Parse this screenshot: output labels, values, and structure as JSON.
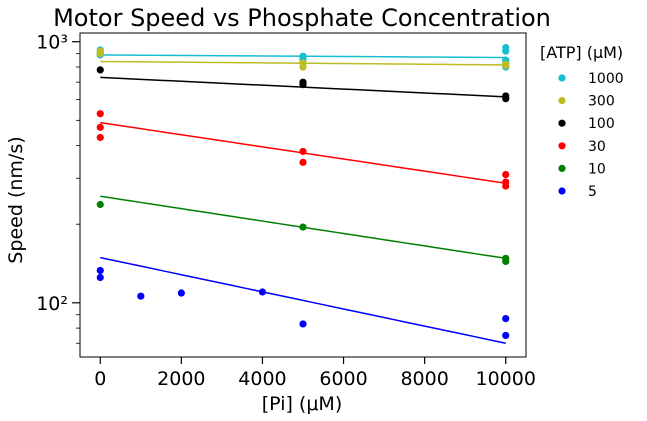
{
  "chart_data": {
    "type": "scatter",
    "title": "Motor Speed vs Phosphate Concentration",
    "xlabel": "[Pi] (μM)",
    "ylabel": "Speed (nm/s)",
    "xlim": [
      -500,
      10500
    ],
    "ylim": [
      62,
      1080
    ],
    "yscale": "log",
    "xticks": [
      0,
      2000,
      4000,
      6000,
      8000,
      10000
    ],
    "xtick_labels": [
      "0",
      "2000",
      "4000",
      "6000",
      "8000",
      "10000"
    ],
    "yticks_major": [
      100,
      1000
    ],
    "ytick_labels": [
      "10²",
      "10³"
    ],
    "legend": {
      "title": "[ATP] (μM)",
      "placement": "outside-right"
    },
    "series": [
      {
        "name": "1000",
        "color": "#17becf",
        "points": [
          [
            0,
            930
          ],
          [
            0,
            910
          ],
          [
            0,
            890
          ],
          [
            5000,
            880
          ],
          [
            5000,
            860
          ],
          [
            5000,
            840
          ],
          [
            10000,
            950
          ],
          [
            10000,
            920
          ],
          [
            10000,
            850
          ],
          [
            10000,
            830
          ],
          [
            10000,
            800
          ]
        ],
        "fit": [
          [
            0,
            890
          ],
          [
            10000,
            870
          ]
        ]
      },
      {
        "name": "300",
        "color": "#bcbd22",
        "points": [
          [
            0,
            920
          ],
          [
            0,
            900
          ],
          [
            5000,
            830
          ],
          [
            5000,
            800
          ],
          [
            10000,
            820
          ],
          [
            10000,
            810
          ]
        ],
        "fit": [
          [
            0,
            840
          ],
          [
            10000,
            815
          ]
        ]
      },
      {
        "name": "100",
        "color": "#000000",
        "points": [
          [
            0,
            780
          ],
          [
            5000,
            700
          ],
          [
            5000,
            685
          ],
          [
            10000,
            620
          ],
          [
            10000,
            605
          ]
        ],
        "fit": [
          [
            0,
            730
          ],
          [
            10000,
            615
          ]
        ]
      },
      {
        "name": "30",
        "color": "#ff0000",
        "points": [
          [
            0,
            530
          ],
          [
            0,
            470
          ],
          [
            0,
            430
          ],
          [
            5000,
            380
          ],
          [
            5000,
            345
          ],
          [
            10000,
            310
          ],
          [
            10000,
            290
          ],
          [
            10000,
            280
          ]
        ],
        "fit": [
          [
            0,
            490
          ],
          [
            10000,
            287
          ]
        ]
      },
      {
        "name": "10",
        "color": "#008000",
        "points": [
          [
            0,
            238
          ],
          [
            5000,
            195
          ],
          [
            10000,
            148
          ],
          [
            10000,
            144
          ]
        ],
        "fit": [
          [
            0,
            256
          ],
          [
            10000,
            148
          ]
        ]
      },
      {
        "name": "5",
        "color": "#0000ff",
        "points": [
          [
            0,
            133
          ],
          [
            0,
            125
          ],
          [
            1000,
            106
          ],
          [
            2000,
            109
          ],
          [
            4000,
            110
          ],
          [
            5000,
            83
          ],
          [
            10000,
            87
          ],
          [
            10000,
            75
          ]
        ],
        "fit": [
          [
            0,
            149
          ],
          [
            10000,
            70
          ]
        ]
      }
    ]
  }
}
